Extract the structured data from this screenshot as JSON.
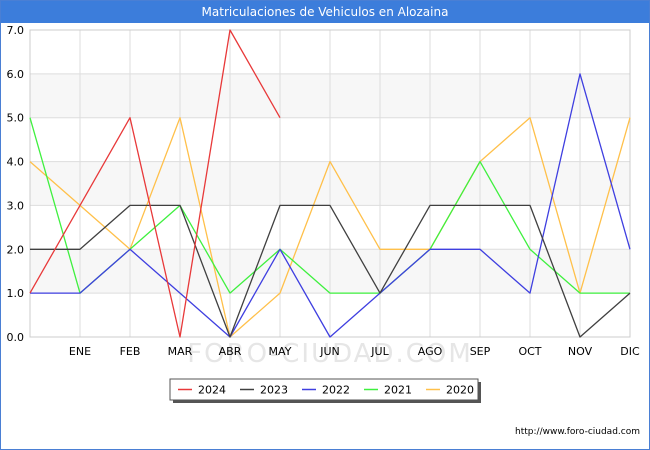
{
  "chart_data": {
    "type": "line",
    "title": "Matriculaciones de Vehiculos en Alozaina",
    "categories": [
      "",
      "ENE",
      "FEB",
      "MAR",
      "ABR",
      "MAY",
      "JUN",
      "JUL",
      "AGO",
      "SEP",
      "OCT",
      "NOV",
      "DIC"
    ],
    "ylim": [
      0,
      7
    ],
    "yticks": [
      "0.0",
      "1.0",
      "2.0",
      "3.0",
      "4.0",
      "5.0",
      "6.0",
      "7.0"
    ],
    "series": [
      {
        "name": "2024",
        "color": "#e8393a",
        "values": [
          1,
          3,
          5,
          0,
          7,
          5,
          null,
          null,
          null,
          null,
          null,
          null,
          null
        ]
      },
      {
        "name": "2023",
        "color": "#404040",
        "values": [
          2,
          2,
          3,
          3,
          0,
          3,
          3,
          1,
          3,
          3,
          3,
          0,
          1
        ]
      },
      {
        "name": "2022",
        "color": "#3f3fe0",
        "values": [
          1,
          1,
          2,
          1,
          0,
          2,
          0,
          1,
          2,
          2,
          1,
          6,
          2
        ]
      },
      {
        "name": "2021",
        "color": "#3ff03f",
        "values": [
          5,
          1,
          2,
          3,
          1,
          2,
          1,
          1,
          2,
          4,
          2,
          1,
          1
        ]
      },
      {
        "name": "2020",
        "color": "#ffc04a",
        "values": [
          4,
          3,
          2,
          5,
          0,
          1,
          4,
          2,
          2,
          4,
          5,
          1,
          5
        ]
      }
    ],
    "legend_position": "bottom-center",
    "grid": true
  },
  "watermark": "FORO-CIUDAD.COM",
  "source_url": "http://www.foro-ciudad.com"
}
